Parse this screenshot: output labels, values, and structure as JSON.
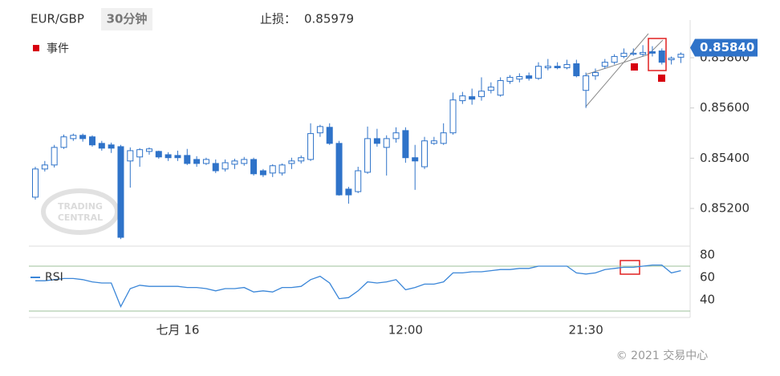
{
  "header": {
    "symbol": "EUR/GBP",
    "interval": "30分钟",
    "stop_label": "止损：",
    "stop_value": "0.85979",
    "legend_event": "事件",
    "watermark": [
      "TRADING",
      "CENTRAL"
    ],
    "copyright": "© 2021 交易中心"
  },
  "chart_data": [
    {
      "type": "candlestick",
      "categories": [
        null,
        null,
        null,
        null,
        null,
        null,
        null,
        null,
        null,
        null,
        null,
        null,
        null,
        null,
        null,
        "七月 16",
        null,
        null,
        null,
        null,
        null,
        null,
        null,
        null,
        null,
        null,
        null,
        null,
        null,
        null,
        null,
        null,
        null,
        null,
        null,
        null,
        null,
        null,
        null,
        "12:00",
        null,
        null,
        null,
        null,
        null,
        null,
        null,
        null,
        null,
        null,
        null,
        null,
        null,
        null,
        null,
        null,
        null,
        null,
        "21:30",
        null,
        null,
        null,
        null,
        null,
        null,
        null,
        null,
        null,
        null
      ],
      "open": [
        0.85245,
        0.85357,
        0.85373,
        0.85443,
        0.85478,
        0.85491,
        0.85485,
        0.85459,
        0.85453,
        0.85446,
        0.85389,
        0.85405,
        0.85427,
        0.85427,
        0.85414,
        0.85411,
        0.85411,
        0.85395,
        0.85379,
        0.85379,
        0.85357,
        0.85376,
        0.85379,
        0.85395,
        0.8535,
        0.85341,
        0.85341,
        0.85379,
        0.85389,
        0.85395,
        0.85501,
        0.85523,
        0.85459,
        0.85277,
        0.85267,
        0.85344,
        0.85478,
        0.85443,
        0.85478,
        0.8551,
        0.85402,
        0.85366,
        0.85459,
        0.85459,
        0.85501,
        0.85629,
        0.85645,
        0.85645,
        0.8567,
        0.85651,
        0.85706,
        0.85715,
        0.85728,
        0.85718,
        0.8576,
        0.85766,
        0.8576,
        0.85776,
        0.8567,
        0.85728,
        0.85766,
        0.85782,
        0.85805,
        0.85814,
        0.85814,
        0.85824,
        0.85827,
        0.85792,
        0.85802
      ],
      "high": [
        0.85366,
        0.85389,
        0.85453,
        0.85494,
        0.85498,
        0.85498,
        0.85491,
        0.85469,
        0.85462,
        0.85453,
        0.85443,
        0.8544,
        0.85443,
        0.8543,
        0.85424,
        0.8543,
        0.85437,
        0.85408,
        0.85402,
        0.85395,
        0.85395,
        0.85398,
        0.85405,
        0.85402,
        0.85357,
        0.85376,
        0.85379,
        0.85402,
        0.85411,
        0.85539,
        0.85533,
        0.85539,
        0.85469,
        0.85286,
        0.85366,
        0.85526,
        0.85517,
        0.85491,
        0.85523,
        0.85523,
        0.85453,
        0.85485,
        0.85485,
        0.85539,
        0.85661,
        0.85664,
        0.85677,
        0.85722,
        0.85702,
        0.85722,
        0.85731,
        0.85738,
        0.85741,
        0.85782,
        0.85795,
        0.85782,
        0.85792,
        0.85792,
        0.85741,
        0.85757,
        0.85795,
        0.85814,
        0.85837,
        0.85837,
        0.8585,
        0.85846,
        0.85837,
        0.85805,
        0.85821
      ],
      "low": [
        0.85235,
        0.85347,
        0.85363,
        0.85437,
        0.85469,
        0.85466,
        0.85446,
        0.8543,
        0.85421,
        0.85078,
        0.85283,
        0.85366,
        0.85414,
        0.85398,
        0.85389,
        0.85389,
        0.85373,
        0.85366,
        0.85373,
        0.85341,
        0.85347,
        0.85357,
        0.8537,
        0.85331,
        0.85325,
        0.85325,
        0.85331,
        0.85357,
        0.85379,
        0.85389,
        0.85485,
        0.85453,
        0.85251,
        0.85219,
        0.85261,
        0.85338,
        0.85446,
        0.85331,
        0.85462,
        0.85382,
        0.85274,
        0.85357,
        0.85453,
        0.85453,
        0.85494,
        0.85616,
        0.85613,
        0.85629,
        0.85658,
        0.85645,
        0.85696,
        0.85702,
        0.85709,
        0.85712,
        0.8575,
        0.85754,
        0.85754,
        0.85722,
        0.856,
        0.85712,
        0.85757,
        0.85773,
        0.85798,
        0.85808,
        0.85805,
        0.85805,
        0.85773,
        0.85773,
        0.85779
      ],
      "close": [
        0.85357,
        0.85373,
        0.85443,
        0.85485,
        0.85491,
        0.85478,
        0.85453,
        0.8544,
        0.8544,
        0.85085,
        0.8543,
        0.85434,
        0.85437,
        0.85405,
        0.85402,
        0.85402,
        0.85379,
        0.85379,
        0.85395,
        0.8535,
        0.85382,
        0.85389,
        0.85395,
        0.85338,
        0.85334,
        0.8537,
        0.85373,
        0.85389,
        0.85402,
        0.85498,
        0.85526,
        0.85459,
        0.85254,
        0.85254,
        0.8535,
        0.85478,
        0.85459,
        0.85478,
        0.85501,
        0.85402,
        0.85389,
        0.85469,
        0.85469,
        0.85501,
        0.85632,
        0.85648,
        0.85635,
        0.85667,
        0.85683,
        0.85709,
        0.85722,
        0.85725,
        0.85718,
        0.85766,
        0.85766,
        0.8576,
        0.85773,
        0.85728,
        0.85728,
        0.85741,
        0.85782,
        0.85805,
        0.85818,
        0.85818,
        0.85821,
        0.85818,
        0.85782,
        0.85798,
        0.85814
      ],
      "up_color": "#ffffff",
      "down_color": "#2f73c9",
      "line_color": "#2f73c9",
      "ylim": [
        0.8505,
        0.8595
      ],
      "yticks": [
        {
          "value": 0.852,
          "label": "0.85200"
        },
        {
          "value": 0.854,
          "label": "0.85400"
        },
        {
          "value": 0.856,
          "label": "0.85600"
        },
        {
          "value": 0.858,
          "label": "0.85800"
        }
      ],
      "current_price": {
        "value": 0.8584,
        "label": "0.85840"
      }
    },
    {
      "type": "line",
      "series": [
        {
          "name": "RSI",
          "color": "#3a86d8",
          "values": [
            57,
            57,
            58,
            59,
            59,
            58,
            56,
            55,
            55,
            34,
            50,
            53,
            52,
            52,
            52,
            52,
            51,
            51,
            50,
            48,
            50,
            50,
            51,
            47,
            48,
            47,
            51,
            51,
            52,
            58,
            61,
            55,
            41,
            42,
            48,
            56,
            55,
            56,
            58,
            49,
            51,
            54,
            54,
            56,
            64,
            64,
            65,
            65,
            66,
            67,
            67,
            68,
            68,
            70,
            70,
            70,
            70,
            64,
            63,
            64,
            67,
            68,
            69,
            69,
            70,
            71,
            71,
            64,
            66
          ]
        }
      ],
      "ylim": [
        25,
        85
      ],
      "yticks": [
        40,
        60,
        80
      ],
      "levels": [
        70,
        30
      ]
    }
  ]
}
